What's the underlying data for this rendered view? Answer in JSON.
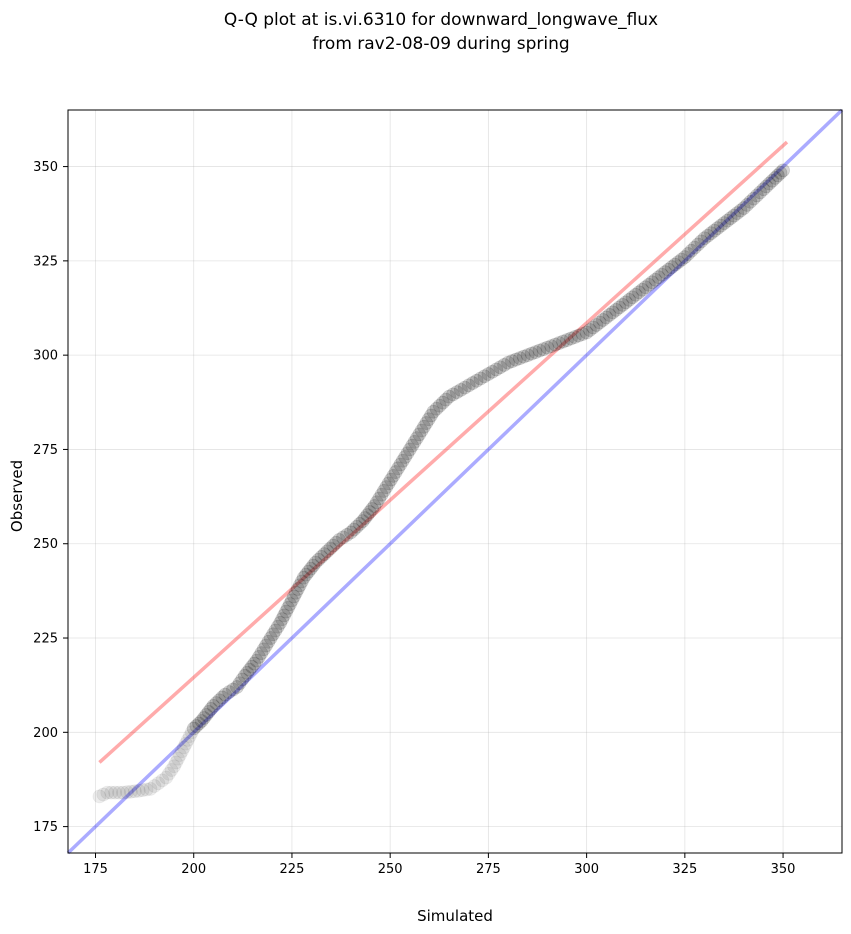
{
  "chart_data": {
    "type": "scatter",
    "title_line1": "Q-Q plot at is.vi.6310 for downward_longwave_flux",
    "title_line2": "from rav2-08-09 during spring",
    "xlabel": "Simulated",
    "ylabel": "Observed",
    "xlim": [
      168,
      365
    ],
    "ylim": [
      168,
      365
    ],
    "x_ticks": [
      175,
      200,
      225,
      250,
      275,
      300,
      325,
      350
    ],
    "y_ticks": [
      175,
      200,
      225,
      250,
      275,
      300,
      325,
      350
    ],
    "grid": true,
    "colors": {
      "points": "#000000",
      "identity_line": "#0000ff",
      "fit_line": "#ff0000"
    },
    "identity_line": {
      "x": [
        168,
        365
      ],
      "y": [
        168,
        365
      ]
    },
    "fit_line": {
      "x": [
        176,
        351
      ],
      "y": [
        192,
        356.5
      ]
    },
    "quantile_anchors": [
      [
        176,
        183
      ],
      [
        178,
        184
      ],
      [
        182,
        184
      ],
      [
        186,
        184.5
      ],
      [
        189,
        185
      ],
      [
        191,
        186.5
      ],
      [
        193,
        188
      ],
      [
        195,
        191
      ],
      [
        197,
        195
      ],
      [
        199,
        199
      ],
      [
        200,
        201
      ],
      [
        202,
        203
      ],
      [
        205,
        207
      ],
      [
        208,
        210
      ],
      [
        211,
        212
      ],
      [
        213,
        215
      ],
      [
        216,
        219
      ],
      [
        219,
        224
      ],
      [
        222,
        229
      ],
      [
        225,
        235
      ],
      [
        228,
        241
      ],
      [
        231,
        245
      ],
      [
        234,
        248
      ],
      [
        237,
        251
      ],
      [
        240,
        253
      ],
      [
        243,
        256
      ],
      [
        246,
        260
      ],
      [
        249,
        265
      ],
      [
        252,
        270
      ],
      [
        255,
        275
      ],
      [
        258,
        280
      ],
      [
        261,
        285
      ],
      [
        265,
        289
      ],
      [
        270,
        292
      ],
      [
        275,
        295
      ],
      [
        280,
        298
      ],
      [
        285,
        300
      ],
      [
        290,
        302
      ],
      [
        295,
        304
      ],
      [
        300,
        306
      ],
      [
        305,
        310
      ],
      [
        310,
        314
      ],
      [
        315,
        318
      ],
      [
        320,
        322
      ],
      [
        325,
        326
      ],
      [
        330,
        331
      ],
      [
        335,
        335
      ],
      [
        340,
        339
      ],
      [
        345,
        344
      ],
      [
        348,
        347
      ],
      [
        350,
        349
      ]
    ]
  }
}
